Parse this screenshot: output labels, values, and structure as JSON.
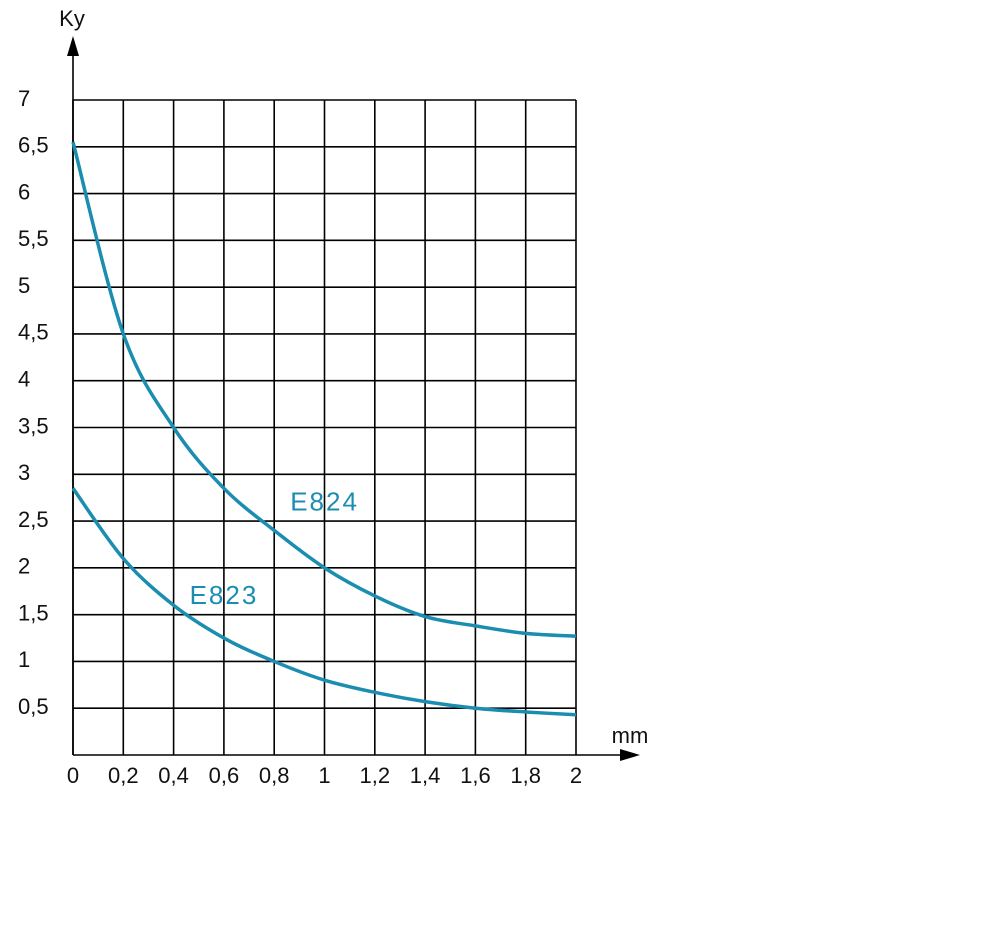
{
  "chart_data": {
    "type": "line",
    "y_label": "Ky",
    "x_label": "mm",
    "x": [
      0,
      0.2,
      0.4,
      0.6,
      0.8,
      1.0,
      1.2,
      1.4,
      1.6,
      1.8,
      2.0
    ],
    "series": [
      {
        "name": "E824",
        "color": "#1a8db0",
        "values": [
          6.55,
          4.5,
          3.5,
          2.85,
          2.4,
          2.0,
          1.7,
          1.48,
          1.38,
          1.3,
          1.27
        ]
      },
      {
        "name": "E823",
        "color": "#1a8db0",
        "values": [
          2.85,
          2.1,
          1.6,
          1.25,
          1.0,
          0.8,
          0.67,
          0.57,
          0.5,
          0.46,
          0.43
        ]
      }
    ],
    "xlim": [
      0,
      2
    ],
    "ylim": [
      0,
      7
    ],
    "xticks": [
      0,
      {
        "value": 0.2,
        "label": "0,2"
      },
      {
        "value": 0.4,
        "label": "0,4"
      },
      {
        "value": 0.6,
        "label": "0,6"
      },
      {
        "value": 0.8,
        "label": "0,8"
      },
      1,
      {
        "value": 1.2,
        "label": "1,2"
      },
      {
        "value": 1.4,
        "label": "1,4"
      },
      {
        "value": 1.6,
        "label": "1,6"
      },
      {
        "value": 1.8,
        "label": "1,8"
      },
      2
    ],
    "yticks": [
      {
        "value": 0.5,
        "label": "0,5"
      },
      1,
      {
        "value": 1.5,
        "label": "1,5"
      },
      2,
      {
        "value": 2.5,
        "label": "2,5"
      },
      3,
      {
        "value": 3.5,
        "label": "3,5"
      },
      4,
      {
        "value": 4.5,
        "label": "4,5"
      },
      5,
      {
        "value": 5.5,
        "label": "5,5"
      },
      6,
      {
        "value": 6.5,
        "label": "6,5"
      },
      7
    ],
    "grid": true
  }
}
